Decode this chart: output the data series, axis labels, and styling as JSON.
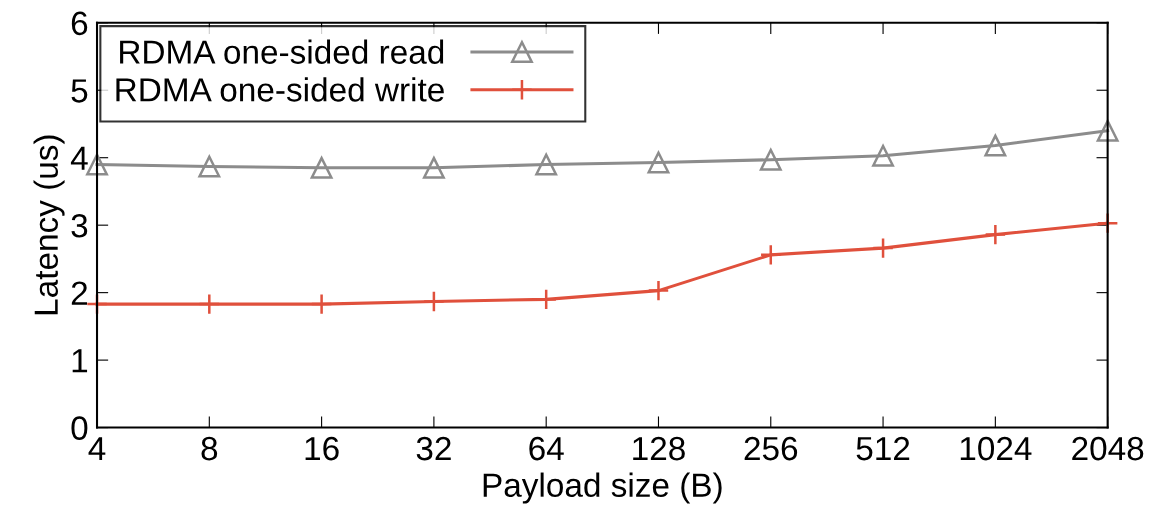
{
  "chart_data": {
    "type": "line",
    "xlabel": "Payload size (B)",
    "ylabel": "Latency (us)",
    "categories": [
      "4",
      "8",
      "16",
      "32",
      "64",
      "128",
      "256",
      "512",
      "1024",
      "2048"
    ],
    "series": [
      {
        "name": "RDMA one-sided read",
        "color": "#8c8c8c",
        "marker": "triangle",
        "values": [
          3.9,
          3.87,
          3.85,
          3.85,
          3.9,
          3.93,
          3.97,
          4.03,
          4.18,
          4.4
        ]
      },
      {
        "name": "RDMA one-sided write",
        "color": "#e0503c",
        "marker": "cross",
        "values": [
          1.83,
          1.83,
          1.83,
          1.87,
          1.9,
          2.03,
          2.56,
          2.66,
          2.86,
          3.03
        ]
      }
    ],
    "ylim": [
      0,
      6
    ],
    "yticks": [
      0,
      1,
      2,
      3,
      4,
      5,
      6
    ],
    "grid": false,
    "legend": "top left",
    "line_style": "solid"
  }
}
